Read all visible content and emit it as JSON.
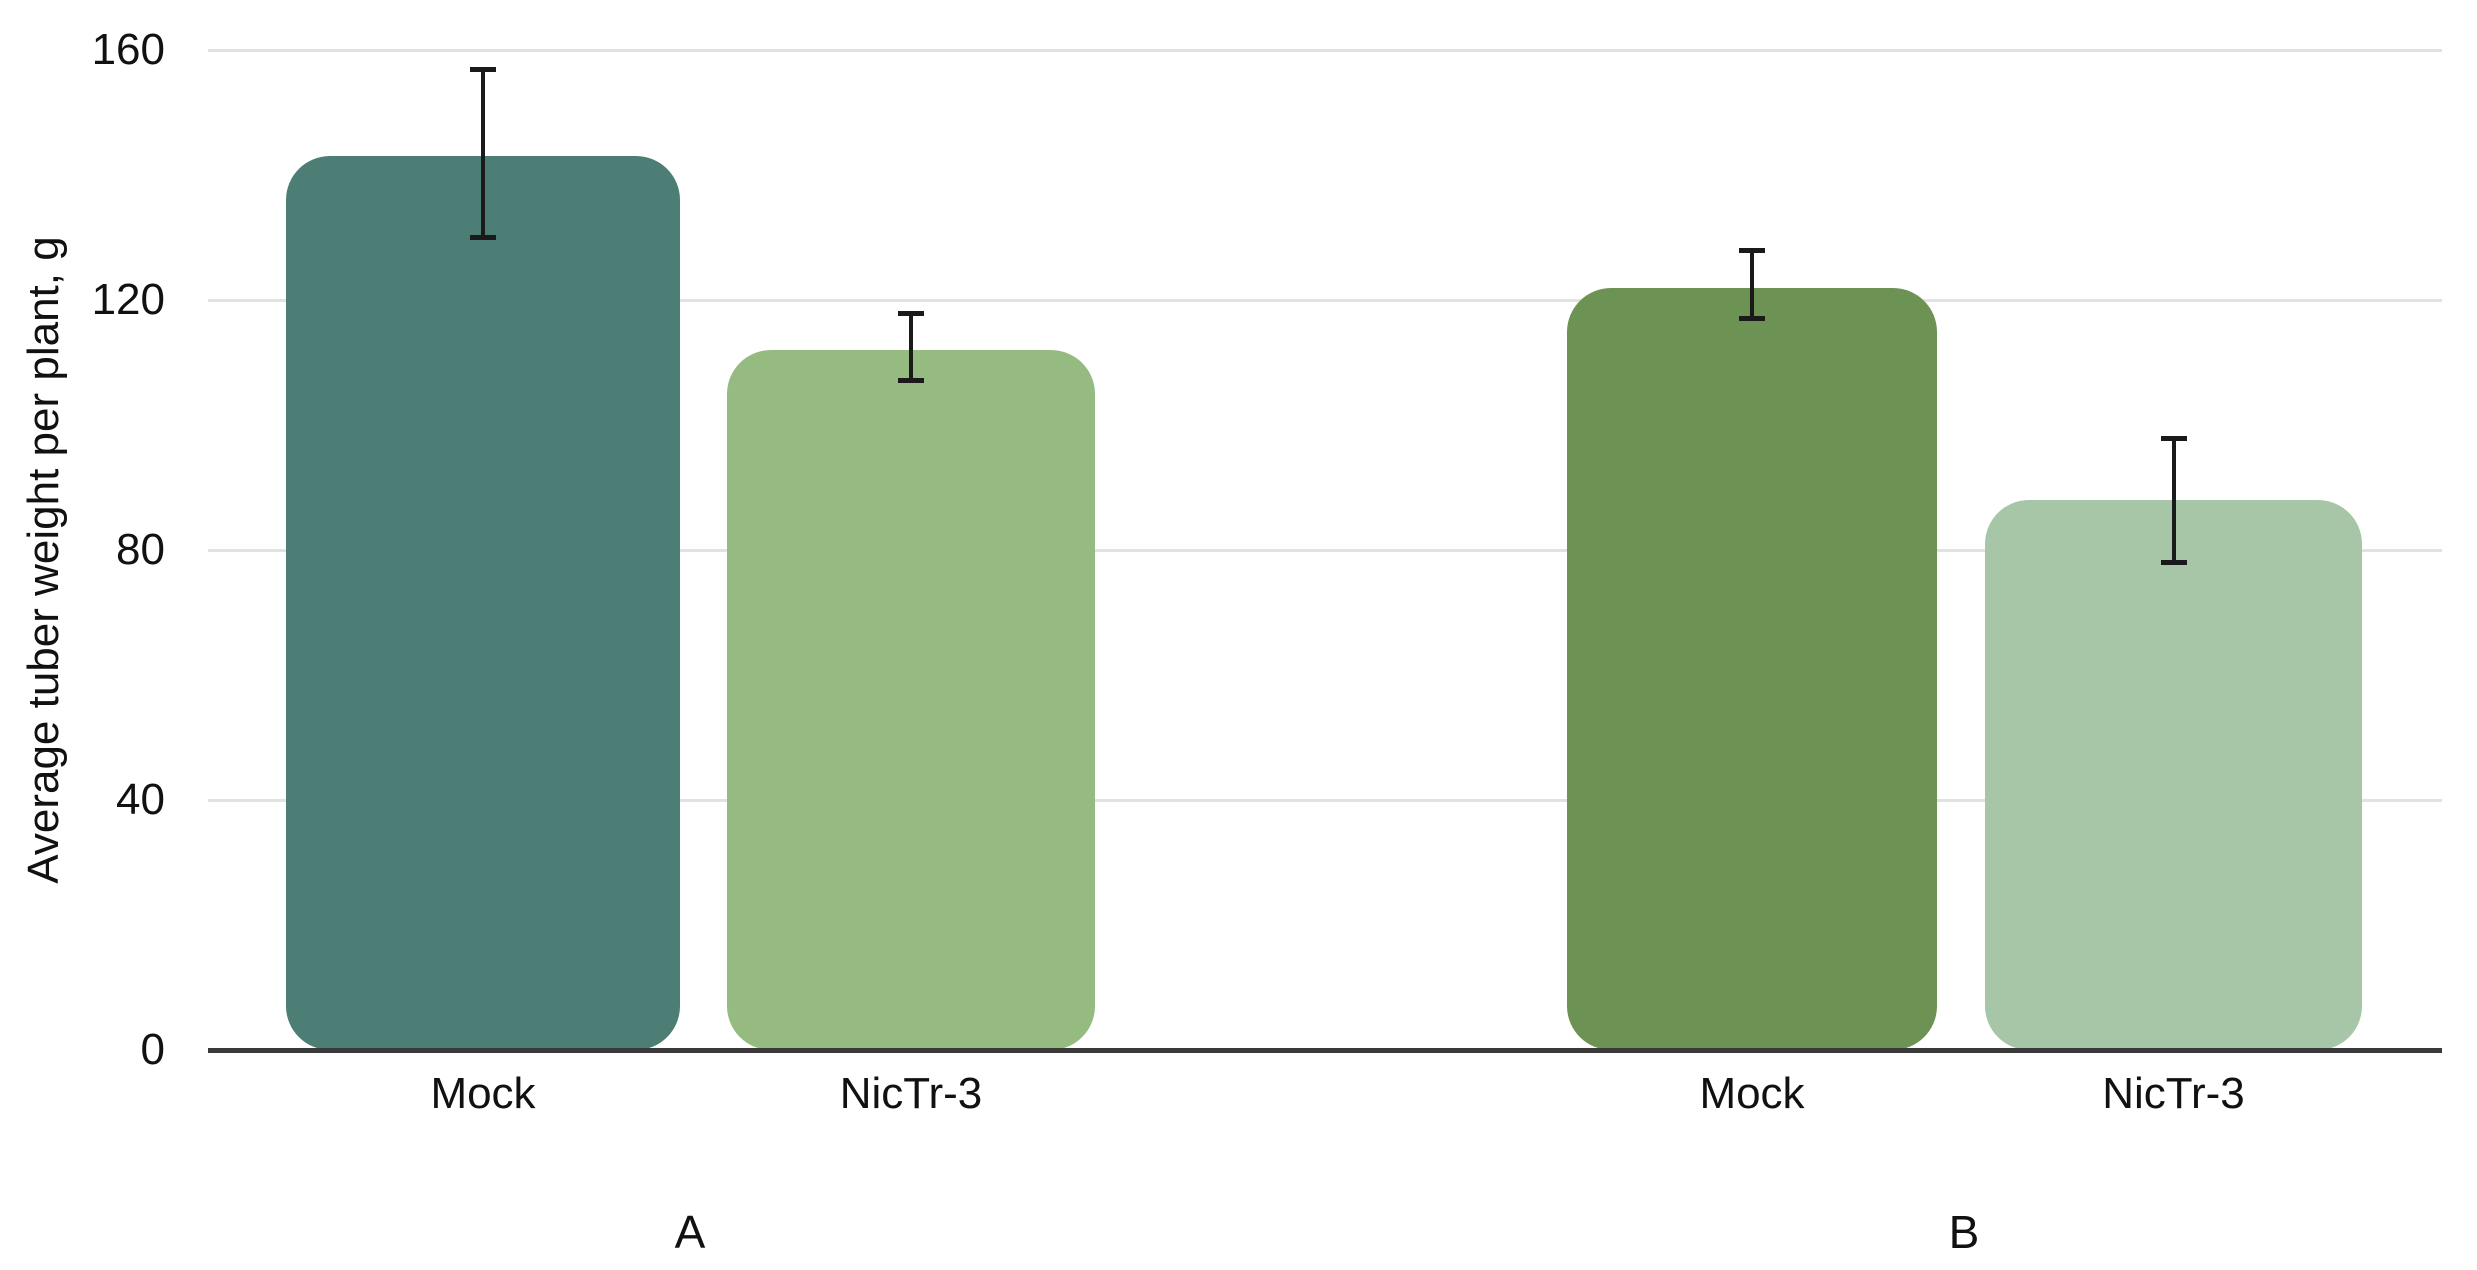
{
  "chart_data": {
    "type": "bar",
    "title": "",
    "xlabel": "",
    "ylabel": "Average tuber weight per plant, g",
    "ylim": [
      0,
      160
    ],
    "yticks": [
      0,
      40,
      80,
      120,
      160
    ],
    "grid": "horizontal gridlines at y ticks, light gray",
    "legend": "none",
    "error_bars": true,
    "groups": [
      {
        "label": "A",
        "bars": [
          {
            "category": "Mock",
            "value": 143,
            "error_low": 130,
            "error_high": 157,
            "color": "#4C7E76"
          },
          {
            "category": "NicTr-3",
            "value": 112,
            "error_low": 107,
            "error_high": 118,
            "color": "#96BB80"
          }
        ]
      },
      {
        "label": "B",
        "bars": [
          {
            "category": "Mock",
            "value": 122,
            "error_low": 117,
            "error_high": 128,
            "color": "#6C9254"
          },
          {
            "category": "NicTr-3",
            "value": 88,
            "error_low": 78,
            "error_high": 98,
            "color": "#A7C6A8"
          }
        ]
      }
    ],
    "colors": {
      "background": "#FFFFFF",
      "axis_line": "#3A3A3A",
      "gridline": "#E2E2E2",
      "error_bar": "#1A1A1A",
      "text": "#111111"
    }
  }
}
